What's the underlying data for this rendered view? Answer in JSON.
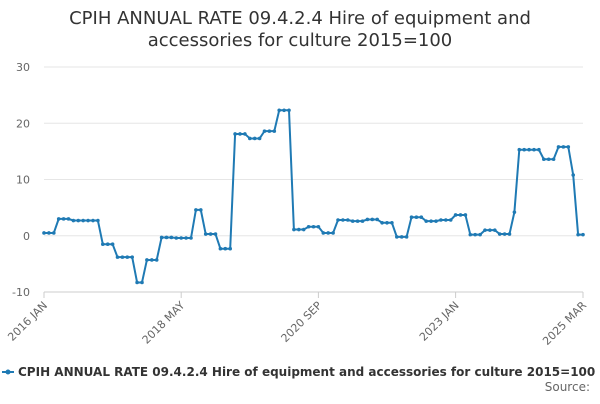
{
  "chart_data": {
    "type": "line",
    "title": "CPIH ANNUAL RATE 09.4.2.4 Hire of equipment and accessories for culture 2015=100",
    "title_lines": [
      "CPIH ANNUAL RATE 09.4.2.4 Hire of equipment and",
      "accessories for culture 2015=100"
    ],
    "xlabel": "",
    "ylabel": "",
    "ylim": [
      -10,
      30
    ],
    "y_ticks": [
      -10,
      0,
      10,
      20,
      30
    ],
    "x_ticks": [
      {
        "label": "2016 JAN",
        "index": 0
      },
      {
        "label": "2018 MAY",
        "index": 28
      },
      {
        "label": "2020 SEP",
        "index": 56
      },
      {
        "label": "2023 JAN",
        "index": 84
      },
      {
        "label": "2025 MAR",
        "index": 110
      }
    ],
    "grid": true,
    "legend_position": "bottom",
    "series": [
      {
        "name": "CPIH ANNUAL RATE 09.4.2.4 Hire of equipment and accessories for culture 2015=100",
        "color": "#1f7ab4",
        "start": "2016 JAN",
        "values": [
          0.5,
          0.5,
          0.5,
          3.0,
          3.0,
          3.0,
          2.7,
          2.7,
          2.7,
          2.7,
          2.7,
          2.7,
          -1.5,
          -1.5,
          -1.5,
          -3.8,
          -3.8,
          -3.8,
          -3.8,
          -8.3,
          -8.3,
          -4.3,
          -4.3,
          -4.3,
          -0.3,
          -0.3,
          -0.3,
          -0.4,
          -0.4,
          -0.4,
          -0.4,
          4.6,
          4.6,
          0.3,
          0.3,
          0.3,
          -2.3,
          -2.3,
          -2.3,
          18.1,
          18.1,
          18.1,
          17.3,
          17.3,
          17.3,
          18.6,
          18.6,
          18.6,
          22.3,
          22.3,
          22.3,
          1.1,
          1.1,
          1.1,
          1.6,
          1.6,
          1.6,
          0.5,
          0.5,
          0.5,
          2.8,
          2.8,
          2.8,
          2.6,
          2.6,
          2.6,
          2.9,
          2.9,
          2.9,
          2.3,
          2.3,
          2.3,
          -0.2,
          -0.2,
          -0.2,
          3.3,
          3.3,
          3.3,
          2.6,
          2.6,
          2.6,
          2.8,
          2.8,
          2.8,
          3.7,
          3.7,
          3.7,
          0.2,
          0.2,
          0.2,
          1.0,
          1.0,
          1.0,
          0.3,
          0.3,
          0.3,
          4.2,
          15.3,
          15.3,
          15.3,
          15.3,
          15.3,
          13.6,
          13.6,
          13.6,
          15.8,
          15.8,
          15.8,
          10.8,
          0.2,
          0.2
        ]
      }
    ],
    "source_label": "Source:"
  }
}
